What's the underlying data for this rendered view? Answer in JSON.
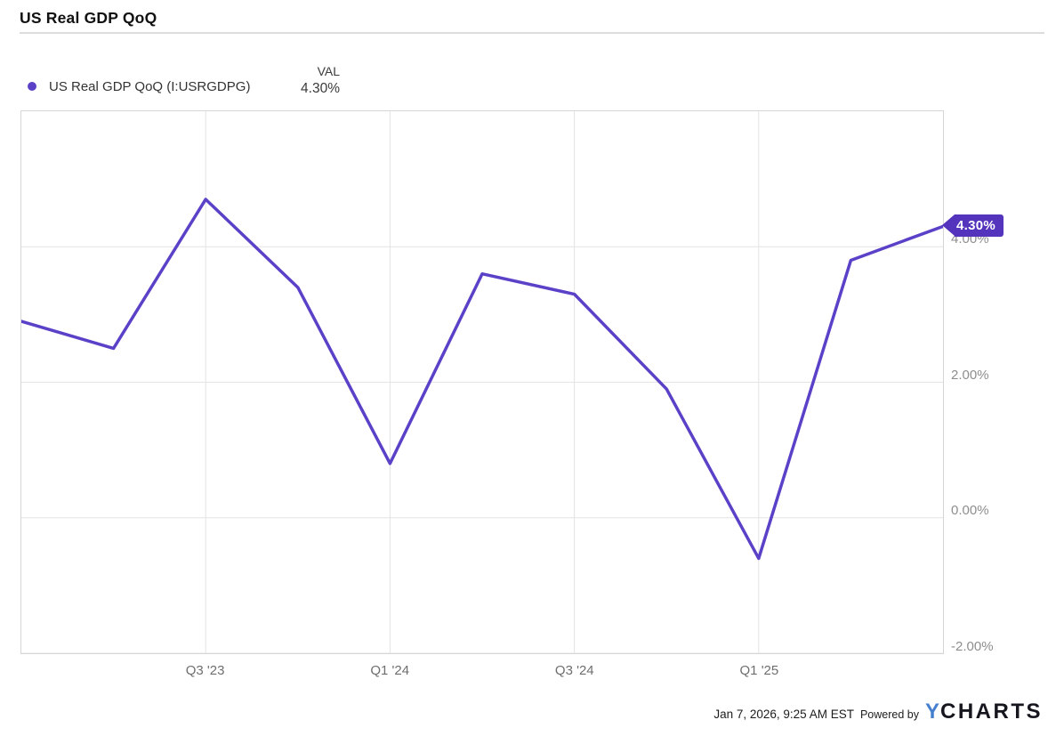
{
  "title": "US Real GDP QoQ",
  "legend": {
    "series_label": "US Real GDP QoQ (I:USRGDPG)",
    "value_header": "VAL",
    "value": "4.30%"
  },
  "badge": {
    "label": "4.30%"
  },
  "footer": {
    "timestamp": "Jan 7, 2026, 9:25 AM EST",
    "powered_by": "Powered by",
    "logo_y": "Y",
    "logo_rest": "CHARTS"
  },
  "colors": {
    "line": "#5b41c8",
    "legend_dot": "#5b41c8",
    "badge_bg": "#5433bd",
    "gridline": "#e4e4e4",
    "plot_border": "#d6d6d6",
    "logo_blue": "#4580cf",
    "logo_dark": "#16161f"
  },
  "chart_data": {
    "type": "line",
    "title": "US Real GDP QoQ",
    "categories": [
      "Q1 '23",
      "Q2 '23",
      "Q3 '23",
      "Q4 '23",
      "Q1 '24",
      "Q2 '24",
      "Q3 '24",
      "Q4 '24",
      "Q1 '25",
      "Q2 '25",
      "Q3 '25"
    ],
    "series": [
      {
        "name": "US Real GDP QoQ (I:USRGDPG)",
        "values": [
          2.9,
          2.5,
          4.7,
          3.4,
          0.8,
          3.6,
          3.3,
          1.9,
          -0.6,
          3.8,
          4.3
        ]
      }
    ],
    "last_value_label": "4.30%",
    "xlabel": "",
    "ylabel": "",
    "ylim": [
      -2,
      6
    ],
    "y_ticks": [
      {
        "value": 4,
        "label": "4.00%"
      },
      {
        "value": 2,
        "label": "2.00%"
      },
      {
        "value": 0,
        "label": "0.00%"
      },
      {
        "value": -2,
        "label": "-2.00%"
      }
    ],
    "x_tick_indices": [
      2,
      4,
      6,
      8
    ],
    "x_tick_labels": [
      "Q3 '23",
      "Q1 '24",
      "Q3 '24",
      "Q1 '25"
    ],
    "grid": true,
    "legend_position": "top-left"
  }
}
